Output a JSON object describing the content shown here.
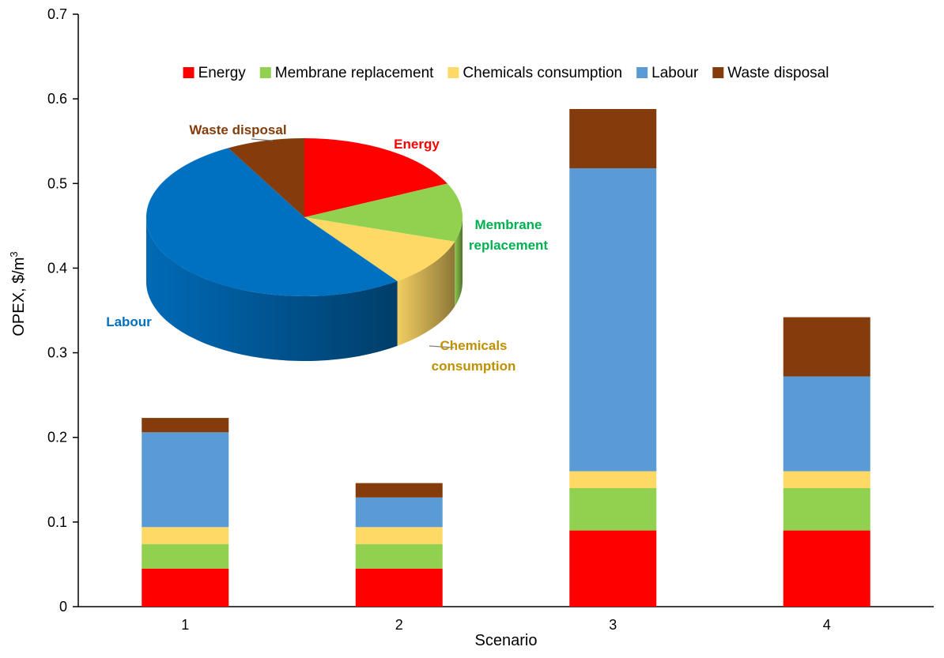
{
  "chart_data": {
    "type": "bar",
    "stacked": true,
    "title": "",
    "xlabel": "Scenario",
    "ylabel": "OPEX, $/m",
    "ylabel_superscript": "3",
    "ylim": [
      0,
      0.7
    ],
    "yticks": [
      0,
      0.1,
      0.2,
      0.3,
      0.4,
      0.5,
      0.6,
      0.7
    ],
    "ytick_labels": [
      "0",
      "0.1",
      "0.2",
      "0.3",
      "0.4",
      "0.5",
      "0.6",
      "0.7"
    ],
    "categories": [
      "1",
      "2",
      "3",
      "4"
    ],
    "grid": false,
    "legend_position": "top",
    "series": [
      {
        "name": "Energy",
        "color": "#ff0000",
        "values": [
          0.045,
          0.045,
          0.09,
          0.09
        ]
      },
      {
        "name": "Membrane replacement",
        "color": "#92d050",
        "values": [
          0.029,
          0.029,
          0.05,
          0.05
        ]
      },
      {
        "name": "Chemicals consumption",
        "color": "#ffd966",
        "values": [
          0.02,
          0.02,
          0.02,
          0.02
        ]
      },
      {
        "name": "Labour",
        "color": "#5b9bd5",
        "values": [
          0.112,
          0.035,
          0.358,
          0.112
        ]
      },
      {
        "name": "Waste disposal",
        "color": "#843c0c",
        "values": [
          0.017,
          0.017,
          0.07,
          0.07
        ]
      }
    ],
    "inset_pie": {
      "type": "pie",
      "slices": [
        {
          "label": "Energy",
          "value": 18,
          "color": "#ff0000",
          "label_color": "#ff0000"
        },
        {
          "label_lines": [
            "Membrane",
            "replacement"
          ],
          "value": 12,
          "color": "#92d050",
          "label_color": "#00b050"
        },
        {
          "label_lines": [
            "Chemicals",
            "consumption"
          ],
          "value": 10,
          "color": "#ffd966",
          "label_color": "#bf9000"
        },
        {
          "label": "Labour",
          "value": 52,
          "color": "#0070c0",
          "label_color": "#0070c0"
        },
        {
          "label": "Waste disposal",
          "value": 8,
          "color": "#843c0c",
          "label_color": "#843c0c"
        }
      ]
    }
  }
}
